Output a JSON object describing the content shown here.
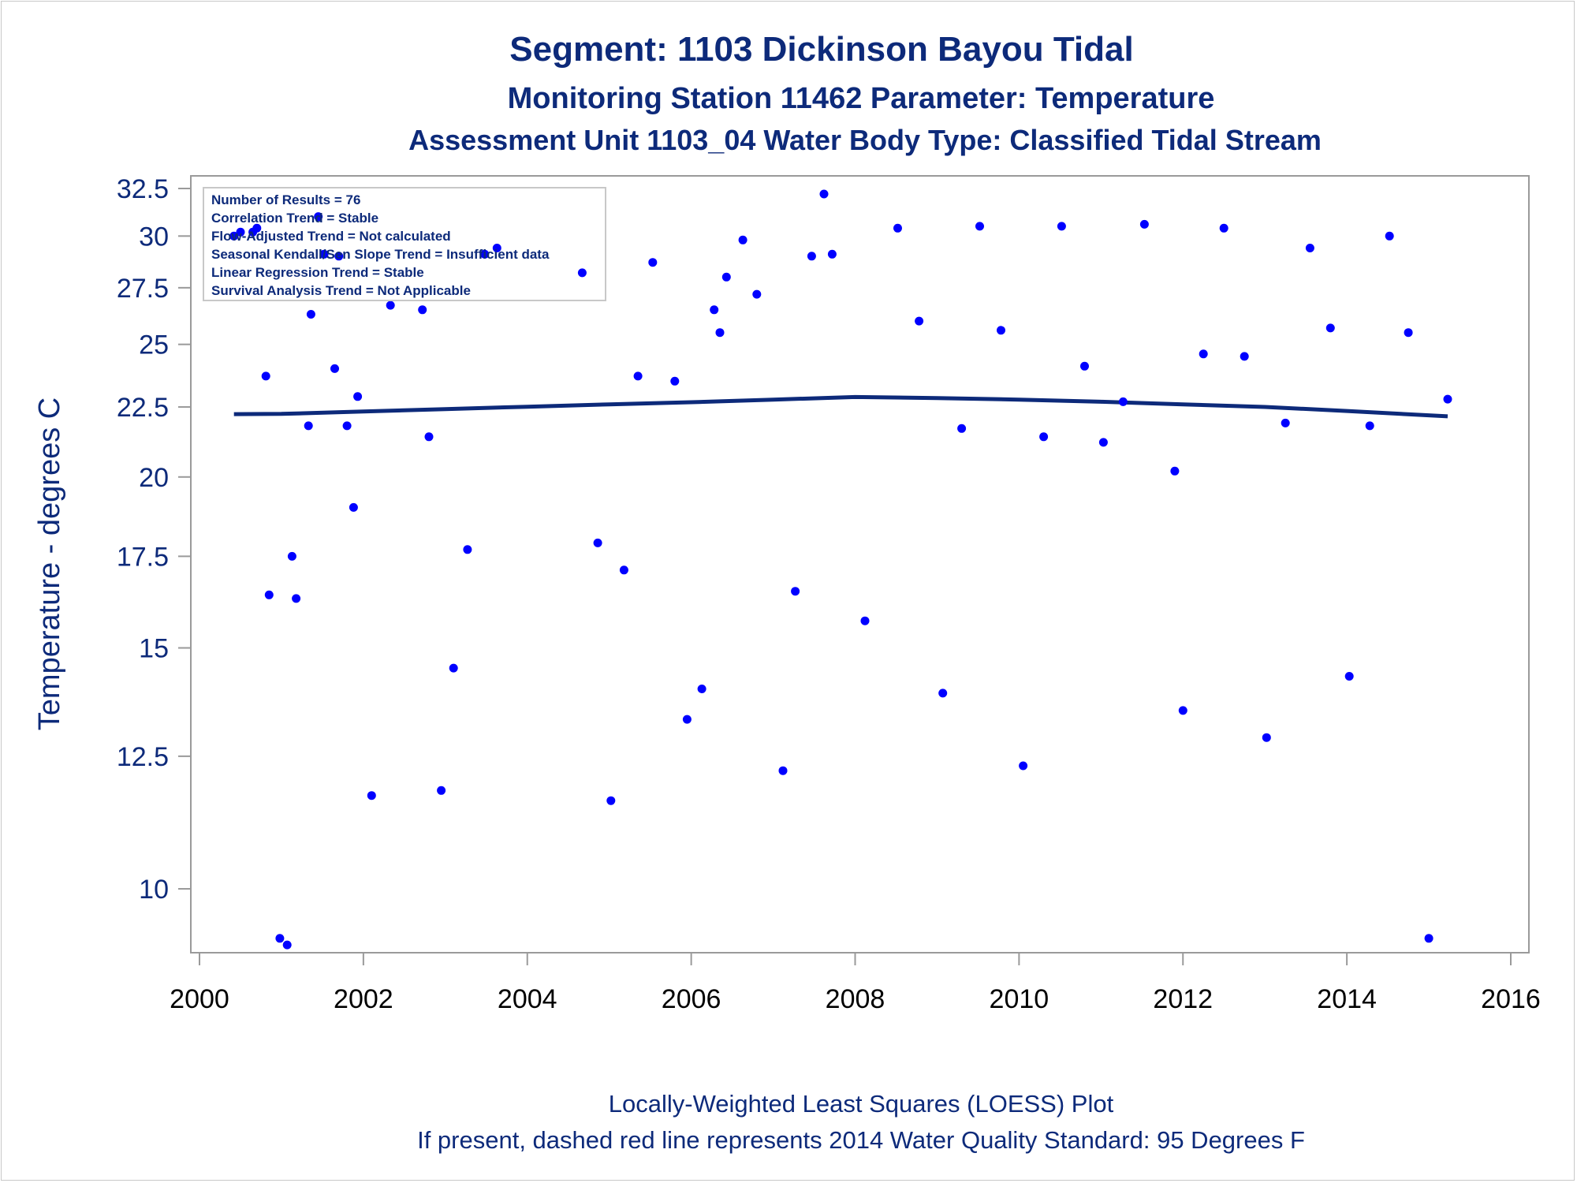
{
  "titles": {
    "line1": "Segment: 1103  Dickinson Bayou Tidal",
    "line2": "Monitoring Station 11462 Parameter: Temperature",
    "line3": "Assessment Unit 1103_04   Water Body Type: Classified Tidal Stream"
  },
  "info_box": {
    "lines": [
      "Number of Results = 76",
      "Correlation Trend = Stable",
      "Flow-Adjusted Trend = Not calculated",
      "Seasonal Kendall/Sen Slope Trend = Insufficient data",
      "Linear Regression Trend = Stable",
      "Survival Analysis Trend = Not Applicable"
    ]
  },
  "footnotes": {
    "line1": "Locally-Weighted Least Squares (LOESS) Plot",
    "line2": "If present, dashed red line represents 2014 Water Quality Standard: 95   Degrees F"
  },
  "colors": {
    "title": "#0d2a7a",
    "points": "#0000ff",
    "loess": "#0d2a7a",
    "axis": "#9a9a9a",
    "tick_text": "#0d2a7a"
  },
  "chart_data": {
    "type": "scatter",
    "title": "Segment: 1103  Dickinson Bayou Tidal",
    "xlabel": "",
    "ylabel": "Temperature - degrees C",
    "x_scale": "linear",
    "y_scale": "log",
    "xlim": [
      2000,
      2016
    ],
    "ylim": [
      8.8,
      32.5
    ],
    "x_ticks": [
      2000,
      2002,
      2004,
      2006,
      2008,
      2010,
      2012,
      2014,
      2016
    ],
    "y_ticks": [
      10,
      12.5,
      15,
      17.5,
      20,
      22.5,
      25,
      27.5,
      30,
      32.5
    ],
    "y_tick_labels": [
      "10",
      "12.5",
      "15",
      "17.5",
      "20",
      "22.5",
      "25",
      "27.5",
      "30",
      "32.5"
    ],
    "grid": false,
    "series": [
      {
        "type": "scatter",
        "points": [
          [
            2000.42,
            30.0
          ],
          [
            2000.5,
            30.2
          ],
          [
            2000.65,
            30.2
          ],
          [
            2000.7,
            30.4
          ],
          [
            2000.81,
            23.7
          ],
          [
            2000.85,
            16.4
          ],
          [
            2000.98,
            9.2
          ],
          [
            2001.07,
            9.1
          ],
          [
            2001.13,
            17.5
          ],
          [
            2001.18,
            16.3
          ],
          [
            2001.33,
            21.8
          ],
          [
            2001.36,
            26.3
          ],
          [
            2001.45,
            31.0
          ],
          [
            2001.52,
            29.1
          ],
          [
            2001.65,
            24.0
          ],
          [
            2001.7,
            29.0
          ],
          [
            2001.8,
            21.8
          ],
          [
            2001.88,
            19.0
          ],
          [
            2001.93,
            22.9
          ],
          [
            2002.1,
            11.7
          ],
          [
            2002.33,
            26.7
          ],
          [
            2002.72,
            26.5
          ],
          [
            2002.8,
            21.4
          ],
          [
            2002.95,
            11.8
          ],
          [
            2003.1,
            14.5
          ],
          [
            2003.27,
            17.7
          ],
          [
            2003.48,
            29.1
          ],
          [
            2003.63,
            29.4
          ],
          [
            2004.67,
            28.2
          ],
          [
            2004.86,
            17.9
          ],
          [
            2005.02,
            11.6
          ],
          [
            2005.18,
            17.1
          ],
          [
            2005.35,
            23.7
          ],
          [
            2005.53,
            28.7
          ],
          [
            2005.8,
            23.5
          ],
          [
            2005.95,
            13.3
          ],
          [
            2006.13,
            14.0
          ],
          [
            2006.28,
            26.5
          ],
          [
            2006.35,
            25.5
          ],
          [
            2006.43,
            28.0
          ],
          [
            2006.63,
            29.8
          ],
          [
            2006.8,
            27.2
          ],
          [
            2007.12,
            12.2
          ],
          [
            2007.27,
            16.5
          ],
          [
            2007.47,
            29.0
          ],
          [
            2007.62,
            32.2
          ],
          [
            2007.72,
            29.1
          ],
          [
            2008.12,
            15.7
          ],
          [
            2008.52,
            30.4
          ],
          [
            2008.78,
            26.0
          ],
          [
            2009.07,
            13.9
          ],
          [
            2009.3,
            21.7
          ],
          [
            2009.52,
            30.5
          ],
          [
            2009.78,
            25.6
          ],
          [
            2010.05,
            12.3
          ],
          [
            2010.3,
            21.4
          ],
          [
            2010.52,
            30.5
          ],
          [
            2010.8,
            24.1
          ],
          [
            2011.03,
            21.2
          ],
          [
            2011.27,
            22.7
          ],
          [
            2011.53,
            30.6
          ],
          [
            2011.9,
            20.2
          ],
          [
            2012.0,
            13.5
          ],
          [
            2012.25,
            24.6
          ],
          [
            2012.5,
            30.4
          ],
          [
            2012.75,
            24.5
          ],
          [
            2013.02,
            12.9
          ],
          [
            2013.25,
            21.9
          ],
          [
            2013.55,
            29.4
          ],
          [
            2013.8,
            25.7
          ],
          [
            2014.03,
            14.3
          ],
          [
            2014.28,
            21.8
          ],
          [
            2014.52,
            30.0
          ],
          [
            2014.75,
            25.5
          ],
          [
            2015.0,
            9.2
          ],
          [
            2015.23,
            22.8
          ]
        ]
      },
      {
        "type": "line",
        "points": [
          [
            2000.42,
            22.23
          ],
          [
            2001.0,
            22.24
          ],
          [
            2002.0,
            22.33
          ],
          [
            2003.0,
            22.42
          ],
          [
            2004.0,
            22.51
          ],
          [
            2005.0,
            22.6
          ],
          [
            2006.0,
            22.68
          ],
          [
            2007.0,
            22.78
          ],
          [
            2008.0,
            22.88
          ],
          [
            2009.0,
            22.84
          ],
          [
            2010.0,
            22.78
          ],
          [
            2011.0,
            22.7
          ],
          [
            2012.0,
            22.6
          ],
          [
            2013.0,
            22.5
          ],
          [
            2014.0,
            22.35
          ],
          [
            2015.23,
            22.15
          ]
        ]
      }
    ]
  }
}
